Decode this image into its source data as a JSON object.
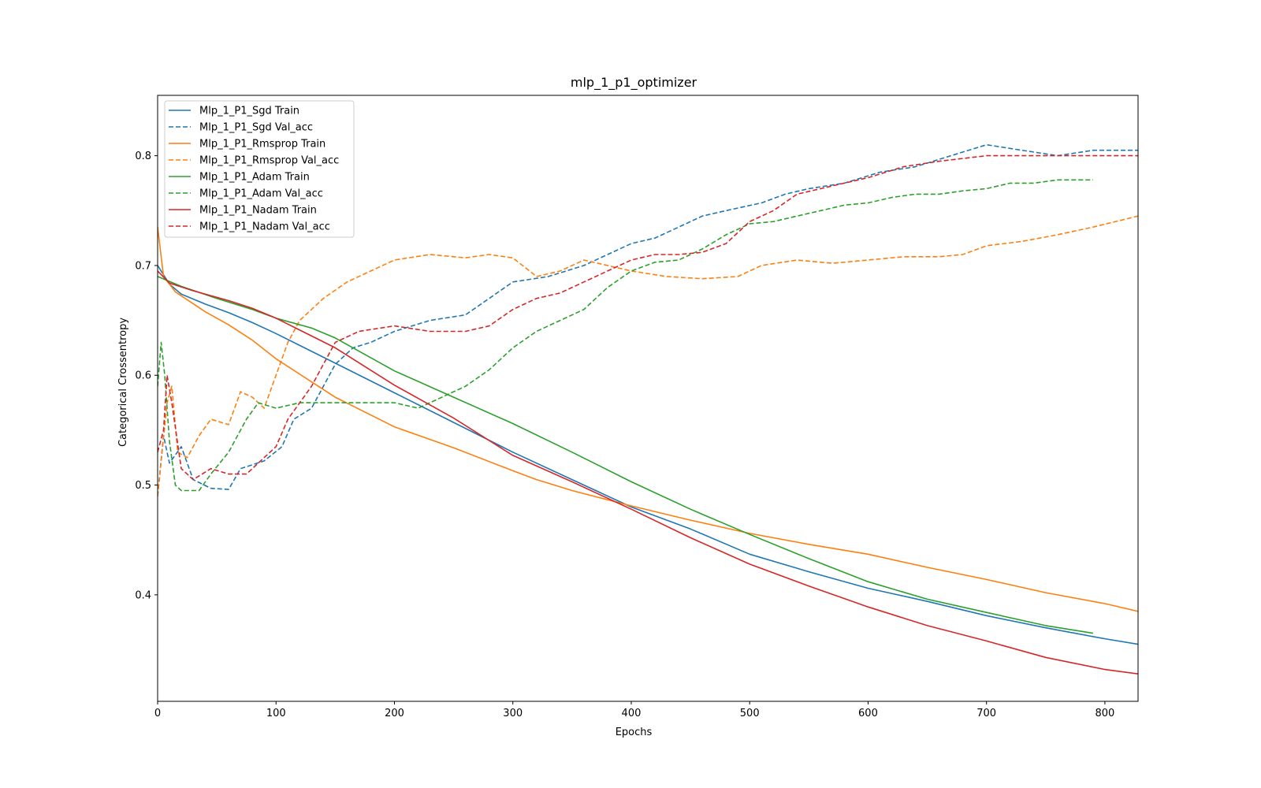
{
  "chart_data": {
    "type": "line",
    "title": "mlp_1_p1_optimizer",
    "xlabel": "Epochs",
    "ylabel": "Categorical Crossentropy",
    "xlim": [
      0,
      828
    ],
    "ylim": [
      0.303,
      0.855
    ],
    "xticks": [
      0,
      100,
      200,
      300,
      400,
      500,
      600,
      700,
      800
    ],
    "yticks": [
      0.4,
      0.5,
      0.6,
      0.7,
      0.8
    ],
    "grid": false,
    "legend_position": "upper-left",
    "series": [
      {
        "name": "Mlp_1_P1_Sgd Train",
        "color": "#1f77b4",
        "dash": "solid",
        "points": [
          [
            0,
            0.7
          ],
          [
            10,
            0.683
          ],
          [
            20,
            0.674
          ],
          [
            40,
            0.665
          ],
          [
            60,
            0.657
          ],
          [
            80,
            0.648
          ],
          [
            100,
            0.638
          ],
          [
            150,
            0.611
          ],
          [
            200,
            0.584
          ],
          [
            250,
            0.557
          ],
          [
            300,
            0.53
          ],
          [
            350,
            0.505
          ],
          [
            400,
            0.48
          ],
          [
            450,
            0.46
          ],
          [
            500,
            0.437
          ],
          [
            550,
            0.421
          ],
          [
            600,
            0.406
          ],
          [
            650,
            0.394
          ],
          [
            700,
            0.381
          ],
          [
            750,
            0.37
          ],
          [
            800,
            0.36
          ],
          [
            828,
            0.355
          ]
        ]
      },
      {
        "name": "Mlp_1_P1_Sgd Val_acc",
        "color": "#1f77b4",
        "dash": "dashed",
        "points": [
          [
            0,
            0.49
          ],
          [
            5,
            0.545
          ],
          [
            10,
            0.52
          ],
          [
            20,
            0.535
          ],
          [
            30,
            0.505
          ],
          [
            45,
            0.497
          ],
          [
            60,
            0.496
          ],
          [
            70,
            0.515
          ],
          [
            90,
            0.522
          ],
          [
            105,
            0.535
          ],
          [
            115,
            0.56
          ],
          [
            130,
            0.57
          ],
          [
            150,
            0.61
          ],
          [
            165,
            0.625
          ],
          [
            180,
            0.63
          ],
          [
            200,
            0.64
          ],
          [
            230,
            0.65
          ],
          [
            260,
            0.655
          ],
          [
            280,
            0.67
          ],
          [
            300,
            0.685
          ],
          [
            330,
            0.69
          ],
          [
            360,
            0.7
          ],
          [
            380,
            0.71
          ],
          [
            400,
            0.72
          ],
          [
            420,
            0.725
          ],
          [
            440,
            0.735
          ],
          [
            460,
            0.745
          ],
          [
            480,
            0.75
          ],
          [
            510,
            0.757
          ],
          [
            530,
            0.765
          ],
          [
            550,
            0.77
          ],
          [
            580,
            0.775
          ],
          [
            610,
            0.785
          ],
          [
            640,
            0.79
          ],
          [
            670,
            0.8
          ],
          [
            700,
            0.81
          ],
          [
            730,
            0.805
          ],
          [
            760,
            0.8
          ],
          [
            790,
            0.805
          ],
          [
            828,
            0.805
          ]
        ]
      },
      {
        "name": "Mlp_1_P1_Rmsprop Train",
        "color": "#ff7f0e",
        "dash": "solid",
        "points": [
          [
            0,
            0.735
          ],
          [
            5,
            0.69
          ],
          [
            15,
            0.676
          ],
          [
            40,
            0.658
          ],
          [
            60,
            0.646
          ],
          [
            80,
            0.632
          ],
          [
            100,
            0.615
          ],
          [
            150,
            0.58
          ],
          [
            200,
            0.553
          ],
          [
            250,
            0.534
          ],
          [
            300,
            0.513
          ],
          [
            320,
            0.505
          ],
          [
            350,
            0.495
          ],
          [
            400,
            0.481
          ],
          [
            450,
            0.468
          ],
          [
            500,
            0.456
          ],
          [
            550,
            0.446
          ],
          [
            600,
            0.437
          ],
          [
            650,
            0.425
          ],
          [
            700,
            0.414
          ],
          [
            750,
            0.402
          ],
          [
            800,
            0.392
          ],
          [
            828,
            0.385
          ]
        ]
      },
      {
        "name": "Mlp_1_P1_Rmsprop Val_acc",
        "color": "#ff7f0e",
        "dash": "dashed",
        "points": [
          [
            0,
            0.49
          ],
          [
            8,
            0.575
          ],
          [
            12,
            0.59
          ],
          [
            17,
            0.53
          ],
          [
            25,
            0.525
          ],
          [
            35,
            0.545
          ],
          [
            45,
            0.56
          ],
          [
            60,
            0.555
          ],
          [
            70,
            0.585
          ],
          [
            80,
            0.58
          ],
          [
            90,
            0.57
          ],
          [
            100,
            0.6
          ],
          [
            110,
            0.63
          ],
          [
            120,
            0.65
          ],
          [
            130,
            0.66
          ],
          [
            140,
            0.67
          ],
          [
            160,
            0.685
          ],
          [
            180,
            0.695
          ],
          [
            200,
            0.705
          ],
          [
            230,
            0.71
          ],
          [
            260,
            0.707
          ],
          [
            280,
            0.71
          ],
          [
            300,
            0.707
          ],
          [
            320,
            0.69
          ],
          [
            340,
            0.695
          ],
          [
            360,
            0.705
          ],
          [
            380,
            0.7
          ],
          [
            400,
            0.695
          ],
          [
            430,
            0.69
          ],
          [
            460,
            0.688
          ],
          [
            490,
            0.69
          ],
          [
            510,
            0.7
          ],
          [
            540,
            0.705
          ],
          [
            570,
            0.702
          ],
          [
            600,
            0.705
          ],
          [
            630,
            0.708
          ],
          [
            660,
            0.708
          ],
          [
            680,
            0.71
          ],
          [
            700,
            0.718
          ],
          [
            730,
            0.722
          ],
          [
            760,
            0.728
          ],
          [
            790,
            0.735
          ],
          [
            828,
            0.745
          ]
        ]
      },
      {
        "name": "Mlp_1_P1_Adam Train",
        "color": "#2ca02c",
        "dash": "solid",
        "points": [
          [
            0,
            0.69
          ],
          [
            20,
            0.681
          ],
          [
            50,
            0.67
          ],
          [
            80,
            0.66
          ],
          [
            100,
            0.652
          ],
          [
            130,
            0.643
          ],
          [
            150,
            0.634
          ],
          [
            200,
            0.604
          ],
          [
            250,
            0.58
          ],
          [
            300,
            0.556
          ],
          [
            350,
            0.53
          ],
          [
            400,
            0.503
          ],
          [
            450,
            0.478
          ],
          [
            500,
            0.455
          ],
          [
            550,
            0.433
          ],
          [
            600,
            0.412
          ],
          [
            650,
            0.396
          ],
          [
            700,
            0.384
          ],
          [
            750,
            0.372
          ],
          [
            790,
            0.365
          ]
        ]
      },
      {
        "name": "Mlp_1_P1_Adam Val_acc",
        "color": "#2ca02c",
        "dash": "dashed",
        "points": [
          [
            0,
            0.59
          ],
          [
            3,
            0.63
          ],
          [
            6,
            0.6
          ],
          [
            10,
            0.54
          ],
          [
            15,
            0.5
          ],
          [
            20,
            0.495
          ],
          [
            35,
            0.495
          ],
          [
            45,
            0.51
          ],
          [
            60,
            0.53
          ],
          [
            75,
            0.56
          ],
          [
            85,
            0.575
          ],
          [
            100,
            0.57
          ],
          [
            120,
            0.575
          ],
          [
            140,
            0.575
          ],
          [
            160,
            0.575
          ],
          [
            180,
            0.575
          ],
          [
            200,
            0.575
          ],
          [
            220,
            0.57
          ],
          [
            240,
            0.58
          ],
          [
            260,
            0.59
          ],
          [
            280,
            0.605
          ],
          [
            300,
            0.625
          ],
          [
            320,
            0.64
          ],
          [
            340,
            0.65
          ],
          [
            360,
            0.66
          ],
          [
            380,
            0.68
          ],
          [
            400,
            0.695
          ],
          [
            420,
            0.703
          ],
          [
            440,
            0.705
          ],
          [
            460,
            0.715
          ],
          [
            480,
            0.728
          ],
          [
            500,
            0.738
          ],
          [
            520,
            0.74
          ],
          [
            540,
            0.745
          ],
          [
            560,
            0.75
          ],
          [
            580,
            0.755
          ],
          [
            600,
            0.757
          ],
          [
            620,
            0.762
          ],
          [
            640,
            0.765
          ],
          [
            660,
            0.765
          ],
          [
            680,
            0.768
          ],
          [
            700,
            0.77
          ],
          [
            720,
            0.775
          ],
          [
            740,
            0.775
          ],
          [
            760,
            0.778
          ],
          [
            790,
            0.778
          ]
        ]
      },
      {
        "name": "Mlp_1_P1_Nadam Train",
        "color": "#d62728",
        "dash": "solid",
        "points": [
          [
            0,
            0.695
          ],
          [
            10,
            0.684
          ],
          [
            30,
            0.677
          ],
          [
            60,
            0.668
          ],
          [
            80,
            0.661
          ],
          [
            100,
            0.652
          ],
          [
            150,
            0.625
          ],
          [
            200,
            0.591
          ],
          [
            250,
            0.561
          ],
          [
            300,
            0.527
          ],
          [
            350,
            0.503
          ],
          [
            400,
            0.478
          ],
          [
            450,
            0.452
          ],
          [
            500,
            0.428
          ],
          [
            550,
            0.408
          ],
          [
            600,
            0.389
          ],
          [
            650,
            0.372
          ],
          [
            700,
            0.358
          ],
          [
            750,
            0.343
          ],
          [
            800,
            0.332
          ],
          [
            828,
            0.328
          ]
        ]
      },
      {
        "name": "Mlp_1_P1_Nadam Val_acc",
        "color": "#d62728",
        "dash": "dashed",
        "points": [
          [
            0,
            0.53
          ],
          [
            5,
            0.55
          ],
          [
            8,
            0.6
          ],
          [
            12,
            0.575
          ],
          [
            20,
            0.515
          ],
          [
            30,
            0.505
          ],
          [
            45,
            0.515
          ],
          [
            60,
            0.51
          ],
          [
            75,
            0.51
          ],
          [
            90,
            0.525
          ],
          [
            100,
            0.535
          ],
          [
            110,
            0.56
          ],
          [
            120,
            0.575
          ],
          [
            130,
            0.59
          ],
          [
            140,
            0.61
          ],
          [
            150,
            0.63
          ],
          [
            170,
            0.64
          ],
          [
            200,
            0.645
          ],
          [
            230,
            0.64
          ],
          [
            260,
            0.64
          ],
          [
            280,
            0.645
          ],
          [
            300,
            0.66
          ],
          [
            320,
            0.67
          ],
          [
            340,
            0.675
          ],
          [
            360,
            0.685
          ],
          [
            380,
            0.695
          ],
          [
            400,
            0.705
          ],
          [
            420,
            0.71
          ],
          [
            440,
            0.71
          ],
          [
            460,
            0.712
          ],
          [
            480,
            0.72
          ],
          [
            500,
            0.74
          ],
          [
            520,
            0.75
          ],
          [
            540,
            0.765
          ],
          [
            560,
            0.77
          ],
          [
            580,
            0.775
          ],
          [
            600,
            0.78
          ],
          [
            630,
            0.79
          ],
          [
            660,
            0.795
          ],
          [
            700,
            0.8
          ],
          [
            750,
            0.8
          ],
          [
            780,
            0.8
          ],
          [
            828,
            0.8
          ]
        ]
      }
    ]
  }
}
